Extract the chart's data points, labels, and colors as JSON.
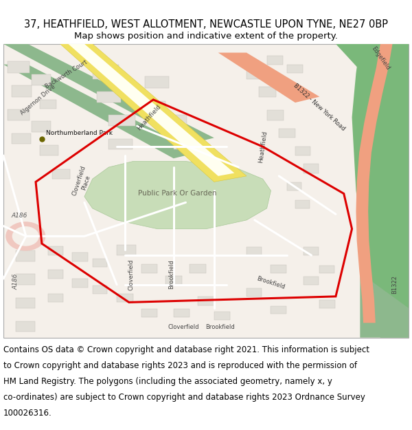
{
  "title_line1": "37, HEATHFIELD, WEST ALLOTMENT, NEWCASTLE UPON TYNE, NE27 0BP",
  "title_line2": "Map shows position and indicative extent of the property.",
  "footer_lines": [
    "Contains OS data © Crown copyright and database right 2021. This information is subject",
    "to Crown copyright and database rights 2023 and is reproduced with the permission of",
    "HM Land Registry. The polygons (including the associated geometry, namely x, y",
    "co-ordinates) are subject to Crown copyright and database rights 2023 Ordnance Survey",
    "100026316."
  ],
  "title_fontsize": 10.5,
  "subtitle_fontsize": 9.5,
  "footer_fontsize": 8.5,
  "fig_width": 6.0,
  "fig_height": 6.25,
  "dpi": 100,
  "bg_color": "#ffffff",
  "title_color": "#000000",
  "map_bg": "#f5f0ea",
  "map_border_color": "#cccccc"
}
